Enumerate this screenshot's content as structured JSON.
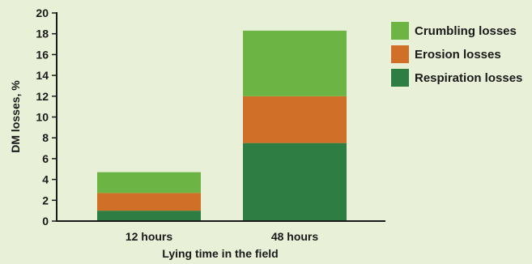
{
  "chart_data": {
    "type": "bar",
    "stacked": true,
    "categories": [
      "12 hours",
      "48 hours"
    ],
    "series": [
      {
        "name": "Respiration losses",
        "color": "#2e7d43",
        "values": [
          1.0,
          7.5
        ]
      },
      {
        "name": "Erosion losses",
        "color": "#d06f27",
        "values": [
          1.7,
          4.5
        ]
      },
      {
        "name": "Crumbling losses",
        "color": "#6cb444",
        "values": [
          2.0,
          6.3
        ]
      }
    ],
    "legend_order": [
      "Crumbling losses",
      "Erosion losses",
      "Respiration losses"
    ],
    "xlabel": "Lying time in the field",
    "ylabel": "DM losses, %",
    "ylim": [
      0,
      20
    ],
    "yticks": [
      0,
      2,
      4,
      6,
      8,
      10,
      12,
      14,
      16,
      18,
      20
    ],
    "grid": false,
    "legend_position": "top-right"
  }
}
